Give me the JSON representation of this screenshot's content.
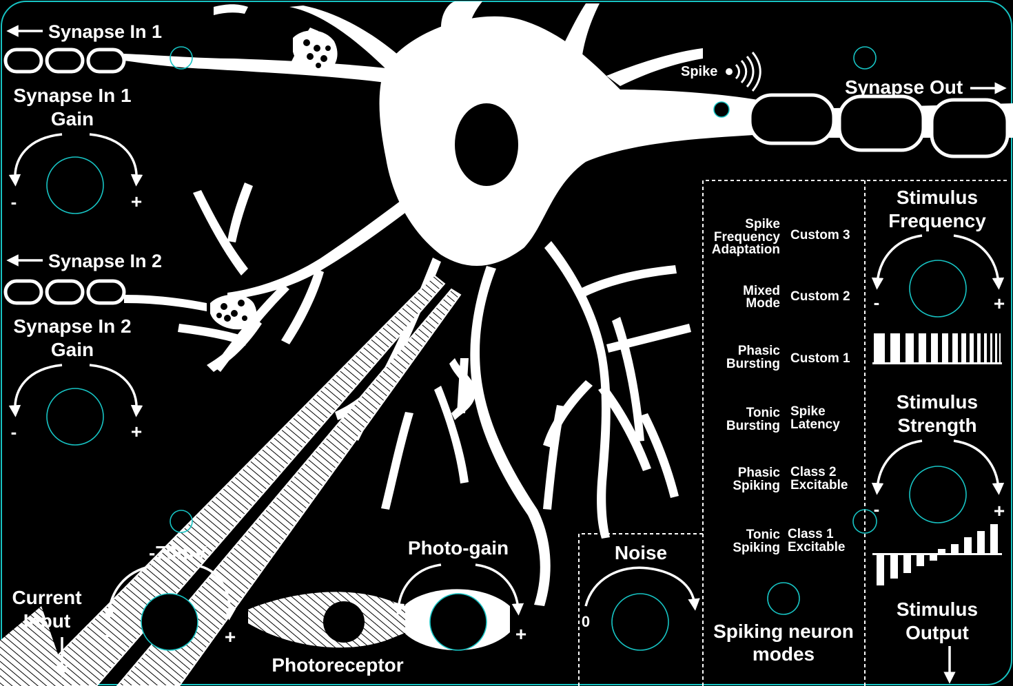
{
  "synapse_in_1": {
    "label": "Synapse In 1",
    "gain_line1": "Synapse In 1",
    "gain_line2": "Gain",
    "minus": "-",
    "plus": "+"
  },
  "synapse_in_2": {
    "label": "Synapse In 2",
    "gain_line1": "Synapse In 2",
    "gain_line2": "Gain",
    "minus": "-",
    "plus": "+"
  },
  "spike": {
    "label": "Spike"
  },
  "synapse_out": {
    "label": "Synapse Out"
  },
  "current_input": {
    "line1": "Current",
    "line2": "Input"
  },
  "membrane": {
    "label": "-70mV",
    "minus": "-",
    "plus": "+"
  },
  "photoreceptor": {
    "label": "Photoreceptor"
  },
  "photo_gain": {
    "label": "Photo-gain",
    "minus": "-",
    "plus": "+"
  },
  "noise": {
    "label": "Noise",
    "zero": "0"
  },
  "modes": {
    "title_line1": "Spiking neuron",
    "title_line2": "modes",
    "left": [
      [
        "Spike",
        "Frequency",
        "Adaptation"
      ],
      [
        "Mixed",
        "Mode"
      ],
      [
        "Phasic",
        "Bursting"
      ],
      [
        "Tonic",
        "Bursting"
      ],
      [
        "Phasic",
        "Spiking"
      ],
      [
        "Tonic",
        "Spiking"
      ]
    ],
    "right": [
      [
        "Custom 3"
      ],
      [
        "Custom 2"
      ],
      [
        "Custom 1"
      ],
      [
        "Spike",
        "Latency"
      ],
      [
        "Class 2",
        "Excitable"
      ],
      [
        "Class 1",
        "Excitable"
      ]
    ]
  },
  "stimulus_frequency": {
    "line1": "Stimulus",
    "line2": "Frequency",
    "minus": "-",
    "plus": "+"
  },
  "stimulus_strength": {
    "line1": "Stimulus",
    "line2": "Strength",
    "minus": "-",
    "plus": "+"
  },
  "stimulus_output": {
    "line1": "Stimulus",
    "line2": "Output"
  },
  "colors": {
    "background": "#000000",
    "artwork": "#ffffff",
    "control_outline": "#17c4c4"
  }
}
